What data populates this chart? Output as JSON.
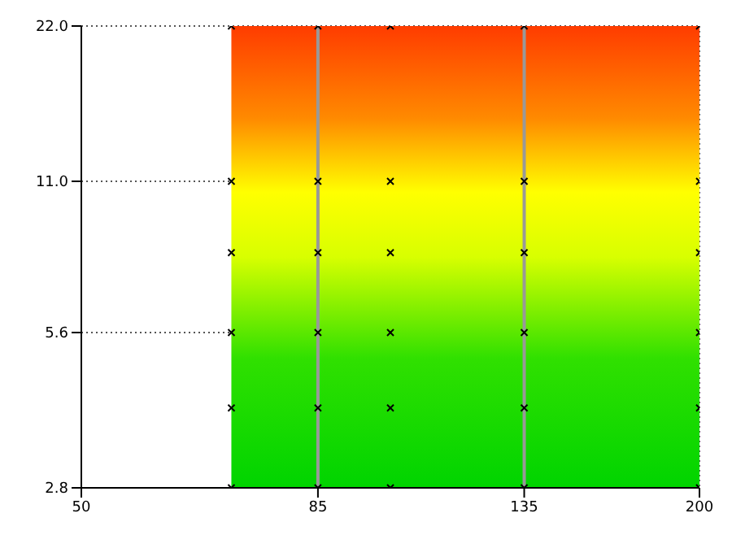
{
  "chart_data": {
    "type": "scatter",
    "marker": "cross",
    "log": "xy",
    "grid": true,
    "series": [
      {
        "color": "#000000",
        "x": [
          70,
          85,
          100,
          135,
          200,
          70,
          85,
          100,
          135,
          200,
          70,
          85,
          100,
          135,
          200,
          70,
          85,
          100,
          135,
          200,
          70,
          85,
          100,
          135,
          200,
          70,
          85,
          100,
          135,
          200
        ],
        "values": [
          2.8,
          2.8,
          2.8,
          2.8,
          2.8,
          4,
          4,
          4,
          4,
          4,
          5.6,
          5.6,
          5.6,
          5.6,
          5.6,
          8,
          8,
          8,
          8,
          8,
          11,
          11,
          11,
          11,
          11,
          22,
          22,
          22,
          22,
          22
        ]
      }
    ],
    "xlim": [
      50,
      200
    ],
    "xticks": [
      50,
      85,
      135,
      200
    ],
    "ylim": [
      2.8,
      22
    ],
    "yticks": [
      2.8,
      5.6,
      {
        "value": 11,
        "label": "11.0"
      },
      {
        "value": 22,
        "label": "22.0"
      }
    ],
    "bands": [
      {
        "axis": "x",
        "from": 70,
        "to": 200
      }
    ],
    "ref_lines": [
      {
        "axis": "x",
        "value": 85,
        "color": "#999999",
        "line_style": "solid"
      },
      {
        "axis": "x",
        "value": 135,
        "color": "#999999",
        "line_style": "solid"
      }
    ]
  }
}
